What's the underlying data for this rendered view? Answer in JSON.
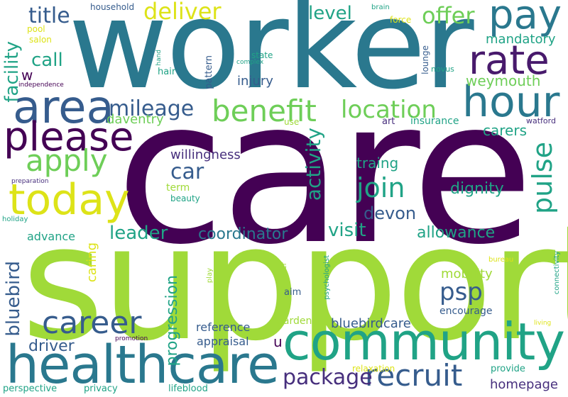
{
  "wordcloud": {
    "words": [
      {
        "text": "care",
        "color": "#440154"
      },
      {
        "text": "support",
        "color": "#a0da39"
      },
      {
        "text": "worker",
        "color": "#2a788e"
      },
      {
        "text": "healthcare",
        "color": "#2a788e"
      },
      {
        "text": "community",
        "color": "#20a386"
      },
      {
        "text": "area",
        "color": "#365c8d"
      },
      {
        "text": "hour",
        "color": "#2a788e"
      },
      {
        "text": "today",
        "color": "#dde318"
      },
      {
        "text": "please",
        "color": "#440154"
      },
      {
        "text": "pay",
        "color": "#2a788e"
      },
      {
        "text": "rate",
        "color": "#481a6c"
      },
      {
        "text": "benefit",
        "color": "#6ece58"
      },
      {
        "text": "location",
        "color": "#6ece58"
      },
      {
        "text": "recruit",
        "color": "#365c8d"
      },
      {
        "text": "career",
        "color": "#365c8d"
      },
      {
        "text": "apply",
        "color": "#6ece58"
      },
      {
        "text": "deliver",
        "color": "#dde318"
      },
      {
        "text": "offer",
        "color": "#6ece58"
      },
      {
        "text": "join",
        "color": "#20a386"
      },
      {
        "text": "mileage",
        "color": "#365c8d"
      },
      {
        "text": "package",
        "color": "#472f7d"
      },
      {
        "text": "pulse",
        "color": "#20a386"
      },
      {
        "text": "car",
        "color": "#365c8d"
      },
      {
        "text": "level",
        "color": "#20a386"
      },
      {
        "text": "title",
        "color": "#365c8d"
      },
      {
        "text": "weymouth",
        "color": "#6ece58"
      },
      {
        "text": "psp",
        "color": "#365c8d"
      },
      {
        "text": "visit",
        "color": "#20a386"
      },
      {
        "text": "leader",
        "color": "#20a386"
      },
      {
        "text": "coordinator",
        "color": "#2a788e"
      },
      {
        "text": "allowance",
        "color": "#20a386"
      },
      {
        "text": "activity",
        "color": "#20a386"
      },
      {
        "text": "devon",
        "color": "#365c8d"
      },
      {
        "text": "dignity",
        "color": "#20a386"
      },
      {
        "text": "bluebird",
        "color": "#365c8d"
      },
      {
        "text": "facility",
        "color": "#20a386"
      },
      {
        "text": "call",
        "color": "#20a386"
      },
      {
        "text": "carers",
        "color": "#20a386"
      },
      {
        "text": "traing",
        "color": "#20a386"
      },
      {
        "text": "homepage",
        "color": "#472f7d"
      },
      {
        "text": "driver",
        "color": "#365c8d"
      },
      {
        "text": "progression",
        "color": "#20a386"
      },
      {
        "text": "mobility",
        "color": "#a0da39"
      },
      {
        "text": "mandatory",
        "color": "#20a386"
      },
      {
        "text": "bluebirdcare",
        "color": "#365c8d"
      },
      {
        "text": "caring",
        "color": "#dde318"
      },
      {
        "text": "willingness",
        "color": "#472f7d"
      },
      {
        "text": "daventry",
        "color": "#6ece58"
      },
      {
        "text": "injury",
        "color": "#365c8d"
      },
      {
        "text": "reference",
        "color": "#365c8d"
      },
      {
        "text": "appraisal",
        "color": "#365c8d"
      },
      {
        "text": "advance",
        "color": "#20a386"
      },
      {
        "text": "encourage",
        "color": "#365c8d"
      },
      {
        "text": "insurance",
        "color": "#20a386"
      },
      {
        "text": "w",
        "color": "#440154"
      },
      {
        "text": "u",
        "color": "#440154"
      },
      {
        "text": "term",
        "color": "#a0da39"
      },
      {
        "text": "beauty",
        "color": "#20a386"
      },
      {
        "text": "garden",
        "color": "#a0da39"
      },
      {
        "text": "lifeblood",
        "color": "#20a386"
      },
      {
        "text": "privacy",
        "color": "#20a386"
      },
      {
        "text": "perspective",
        "color": "#20a386"
      },
      {
        "text": "relaxation",
        "color": "#dde318"
      },
      {
        "text": "provide",
        "color": "#20a386"
      },
      {
        "text": "art",
        "color": "#472f7d"
      },
      {
        "text": "use",
        "color": "#a0da39"
      },
      {
        "text": "hair",
        "color": "#20a386"
      },
      {
        "text": "aim",
        "color": "#365c8d"
      },
      {
        "text": "pattern",
        "color": "#365c8d"
      },
      {
        "text": "state",
        "color": "#20a386"
      },
      {
        "text": "lounge",
        "color": "#365c8d"
      },
      {
        "text": "novus",
        "color": "#20a386"
      },
      {
        "text": "watford",
        "color": "#472f7d"
      },
      {
        "text": "pool",
        "color": "#dde318"
      },
      {
        "text": "salon",
        "color": "#dde318"
      },
      {
        "text": "household",
        "color": "#365c8d"
      },
      {
        "text": "brain",
        "color": "#20a386"
      },
      {
        "text": "force",
        "color": "#dde318"
      },
      {
        "text": "hand",
        "color": "#20a386"
      },
      {
        "text": "complex",
        "color": "#20a386"
      },
      {
        "text": "independence",
        "color": "#440154"
      },
      {
        "text": "preparation",
        "color": "#472f7d"
      },
      {
        "text": "holiday",
        "color": "#20a386"
      },
      {
        "text": "promotion",
        "color": "#440154"
      },
      {
        "text": "play",
        "color": "#a0da39"
      },
      {
        "text": "user",
        "color": "#a0da39"
      },
      {
        "text": "psychologist",
        "color": "#20a386"
      },
      {
        "text": "bureau",
        "color": "#dde318"
      },
      {
        "text": "connectivity",
        "color": "#20a386"
      },
      {
        "text": "living",
        "color": "#dde318"
      }
    ]
  }
}
